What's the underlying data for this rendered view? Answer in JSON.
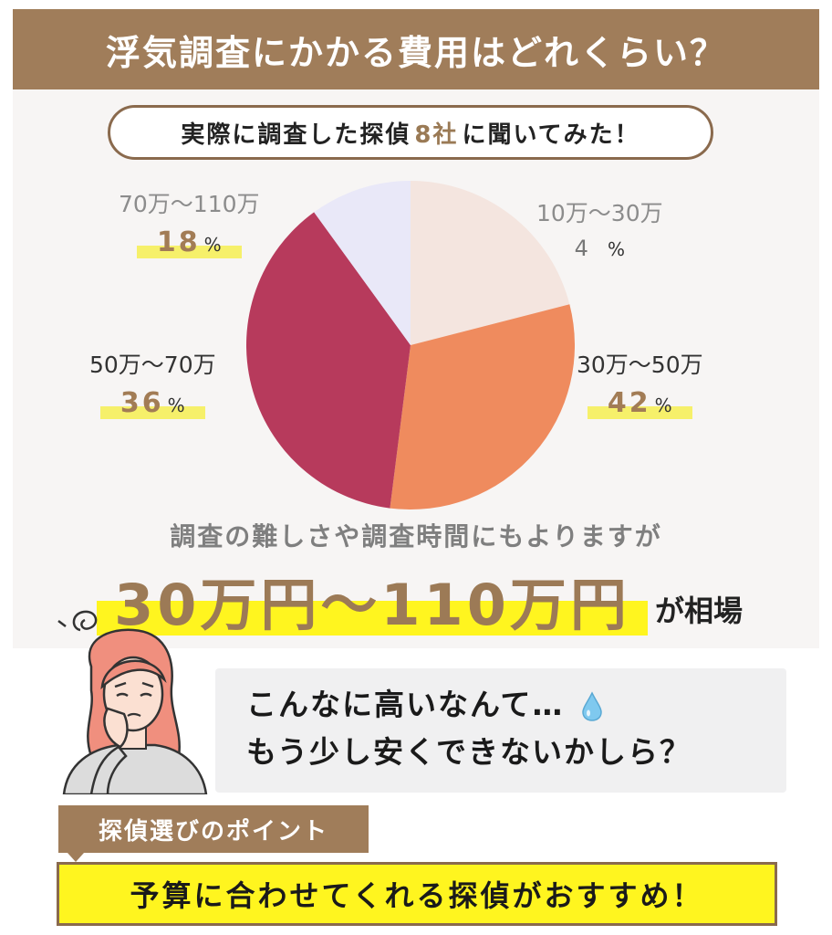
{
  "header": {
    "title": "浮気調査にかかる費用はどれくらい？"
  },
  "subtitle": {
    "before": "実際に調査した探偵",
    "highlight": "8社",
    "after": "に聞いてみた！"
  },
  "chart_data": {
    "type": "pie",
    "title": "",
    "categories": [
      "10万～30万",
      "30万～50万",
      "50万～70万",
      "70万～110万"
    ],
    "values": [
      4,
      42,
      36,
      18
    ],
    "unit": "%",
    "colors": [
      "#f4e5df",
      "#ef8b5e",
      "#b73a5c",
      "#e9e8f8"
    ]
  },
  "labels": {
    "r1": {
      "range": "10万～30万",
      "value": "4",
      "unit": "%"
    },
    "r2": {
      "range": "30万～50万",
      "value": "42",
      "unit": "%"
    },
    "r3": {
      "range": "50万～70万",
      "value": "36",
      "unit": "%"
    },
    "r4": {
      "range": "70万～110万",
      "value": "18",
      "unit": "%"
    }
  },
  "note": "調査の難しさや調査時間にもよりますが",
  "price": {
    "range": "30万円～110万円",
    "suffix": "が相場"
  },
  "speech": {
    "line1": "こんなに高いなんて…",
    "line2": "もう少し安くできないかしら？",
    "icon": "water-drop-icon"
  },
  "point": {
    "tab": "探偵選びのポイント",
    "text": "予算に合わせてくれる探偵がおすすめ！"
  }
}
